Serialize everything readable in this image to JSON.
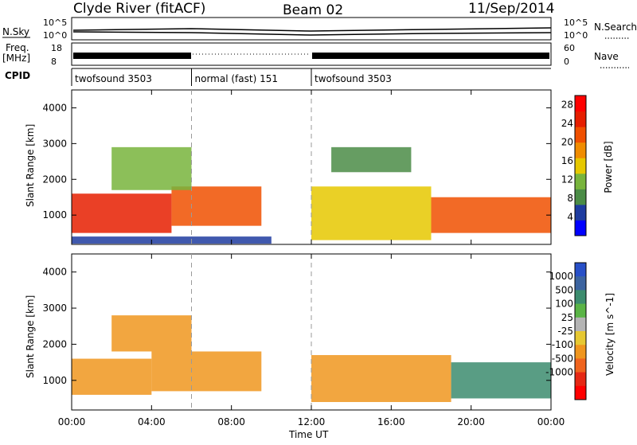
{
  "header": {
    "station": "Clyde River (fitACF)",
    "beam": "Beam 02",
    "date": "11/Sep/2014"
  },
  "left_labels": {
    "nsky": "N.Sky",
    "freq": "Freq.",
    "freq_unit": "[MHz]",
    "cpid": "CPID"
  },
  "right_labels": {
    "nsearch": "N.Search",
    "nave": "Nave"
  },
  "noise_panel": {
    "left_ticks": [
      "10^5",
      "10^0"
    ],
    "right_ticks": [
      "10^5",
      "10^0"
    ]
  },
  "freq_panel": {
    "left_ticks": [
      "18",
      "8"
    ],
    "right_ticks": [
      "60",
      "0"
    ]
  },
  "cpid_segments": [
    {
      "label": "twofsound 3503",
      "start_hour": 0,
      "end_hour": 6
    },
    {
      "label": "normal (fast) 151",
      "start_hour": 6,
      "end_hour": 12
    },
    {
      "label": "twofsound 3503",
      "start_hour": 12,
      "end_hour": 24
    }
  ],
  "colors": {
    "power_scale": [
      "#0000ff",
      "#1e3ca0",
      "#4b8c46",
      "#78b43c",
      "#e6c800",
      "#f08c00",
      "#f05000",
      "#e61e00",
      "#ff0000"
    ],
    "velocity_scale": [
      "#2850c8",
      "#3c64a0",
      "#3c8c6e",
      "#5ab446",
      "#b4b4b4",
      "#e6c832",
      "#f0961e",
      "#f0641e",
      "#e62814",
      "#ff0000"
    ]
  },
  "chart_data": [
    {
      "type": "heatmap",
      "title": "",
      "xlabel": "Time UT",
      "ylabel": "Slant Range [km]",
      "xlim": [
        0,
        24
      ],
      "ylim": [
        180,
        4500
      ],
      "x_ticks": [
        "00:00",
        "04:00",
        "08:00",
        "12:00",
        "16:00",
        "20:00",
        "00:00"
      ],
      "y_ticks": [
        1000,
        2000,
        3000,
        4000
      ],
      "colorbar": {
        "label": "Power [dB]",
        "ticks": [
          4,
          8,
          12,
          16,
          20,
          24,
          28
        ],
        "range": [
          0,
          30
        ]
      },
      "regions": [
        {
          "t_start": 0.0,
          "t_end": 5.0,
          "range_low": 500,
          "range_high": 1600,
          "value": 26
        },
        {
          "t_start": 5.0,
          "t_end": 9.5,
          "range_low": 700,
          "range_high": 1800,
          "value": 22
        },
        {
          "t_start": 2.0,
          "t_end": 6.0,
          "range_low": 1700,
          "range_high": 2900,
          "value": 12
        },
        {
          "t_start": 0.0,
          "t_end": 10.0,
          "range_low": 200,
          "range_high": 400,
          "value": 6
        },
        {
          "t_start": 12.0,
          "t_end": 18.0,
          "range_low": 300,
          "range_high": 1800,
          "value": 16
        },
        {
          "t_start": 13.0,
          "t_end": 17.0,
          "range_low": 2200,
          "range_high": 2900,
          "value": 8
        },
        {
          "t_start": 18.0,
          "t_end": 24.0,
          "range_low": 500,
          "range_high": 1500,
          "value": 20
        }
      ]
    },
    {
      "type": "heatmap",
      "title": "",
      "xlabel": "Time UT",
      "ylabel": "Slant Range [km]",
      "xlim": [
        0,
        24
      ],
      "ylim": [
        180,
        4500
      ],
      "x_ticks": [
        "00:00",
        "04:00",
        "08:00",
        "12:00",
        "16:00",
        "20:00",
        "00:00"
      ],
      "y_ticks": [
        1000,
        2000,
        3000,
        4000
      ],
      "colorbar": {
        "label": "Velocity [m s^-1]",
        "ticks": [
          "1000",
          "500",
          "100",
          "25",
          "-25",
          "-100",
          "-500",
          "-1000"
        ]
      },
      "regions": [
        {
          "t_start": 0.0,
          "t_end": 4.0,
          "range_low": 600,
          "range_high": 1600,
          "value": -150
        },
        {
          "t_start": 4.0,
          "t_end": 9.5,
          "range_low": 700,
          "range_high": 1800,
          "value": -200
        },
        {
          "t_start": 2.0,
          "t_end": 6.0,
          "range_low": 1800,
          "range_high": 2800,
          "value": -120
        },
        {
          "t_start": 12.0,
          "t_end": 19.0,
          "range_low": 400,
          "range_high": 1700,
          "value": -500
        },
        {
          "t_start": 19.0,
          "t_end": 24.0,
          "range_low": 500,
          "range_high": 1500,
          "value": 150
        }
      ]
    }
  ]
}
